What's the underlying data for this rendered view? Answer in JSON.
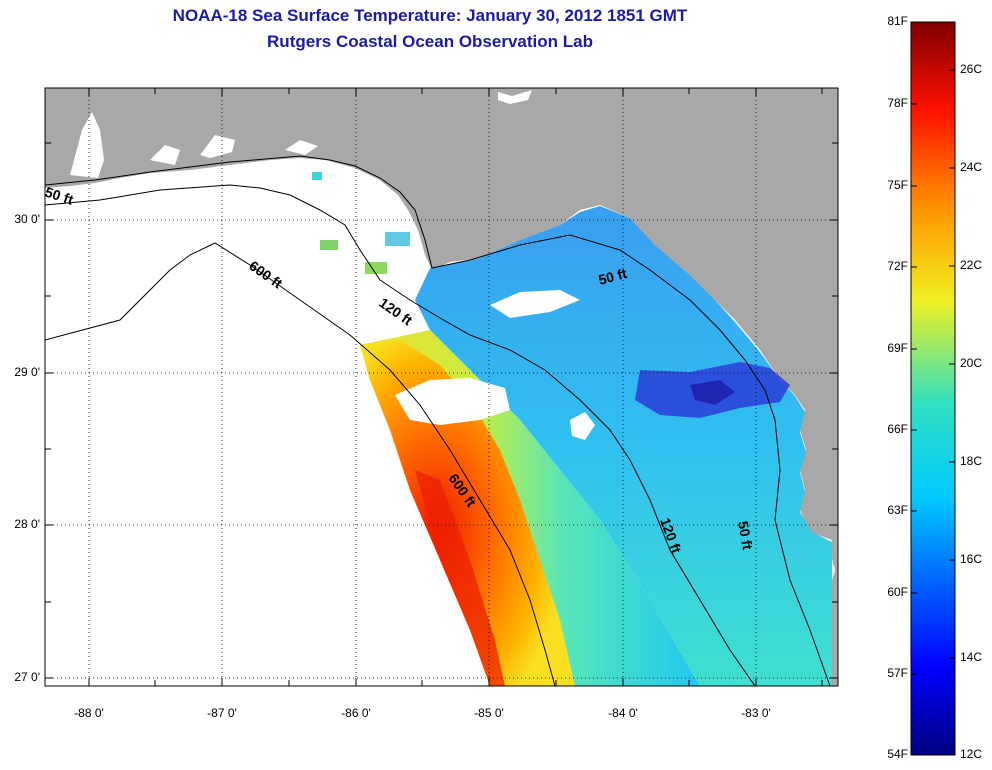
{
  "title": "NOAA-18 Sea Surface Temperature:  January 30, 2012 1851 GMT",
  "subtitle": "Rutgers Coastal Ocean Observation Lab",
  "lat_ticks": [
    "30 0'",
    "29 0'",
    "28 0'",
    "27 0'"
  ],
  "lon_ticks": [
    "-88 0'",
    "-87 0'",
    "-86 0'",
    "-85 0'",
    "-84 0'",
    "-83 0'"
  ],
  "colorbar": {
    "f_labels": [
      "81F",
      "78F",
      "75F",
      "72F",
      "69F",
      "66F",
      "63F",
      "60F",
      "57F",
      "54F"
    ],
    "c_labels": [
      "26C",
      "24C",
      "22C",
      "20C",
      "18C",
      "16C",
      "14C",
      "12C"
    ]
  },
  "depth_labels": {
    "d50_west": "50 ft",
    "d600_north": "600 ft",
    "d120_north": "120 ft",
    "d50_east": "50 ft",
    "d600_south": "600 ft",
    "d120_south": "120 ft",
    "d50_south": "50 ft"
  },
  "colors": {
    "land": "#a8a8a8",
    "title": "#1a1aa8"
  }
}
